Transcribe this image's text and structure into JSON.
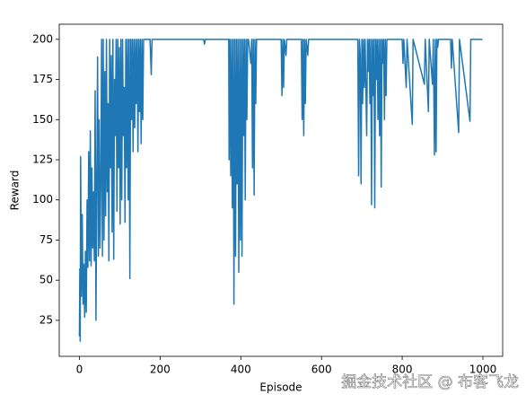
{
  "chart_data": {
    "type": "line",
    "x_label": "Episode",
    "y_label": "Reward",
    "xlim": [
      -50,
      1049
    ],
    "ylim": [
      2.6,
      209.4
    ],
    "xticks": [
      0,
      200,
      400,
      600,
      800,
      1000
    ],
    "yticks": [
      25,
      50,
      75,
      100,
      125,
      150,
      175,
      200
    ],
    "watermark": "掘金技术社区 @ 布客飞龙",
    "series": [
      {
        "color": "#1f77b4",
        "x": [
          0,
          1,
          2,
          3,
          5,
          7,
          9,
          11,
          13,
          15,
          17,
          19,
          21,
          23,
          25,
          27,
          29,
          31,
          33,
          35,
          37,
          39,
          41,
          43,
          45,
          47,
          49,
          51,
          53,
          55,
          57,
          59,
          61,
          63,
          65,
          67,
          69,
          71,
          73,
          75,
          77,
          79,
          81,
          83,
          85,
          87,
          89,
          91,
          93,
          95,
          97,
          99,
          101,
          103,
          105,
          107,
          109,
          111,
          113,
          115,
          117,
          119,
          121,
          123,
          125,
          127,
          129,
          131,
          133,
          135,
          137,
          139,
          141,
          143,
          145,
          147,
          149,
          151,
          153,
          155,
          157,
          159,
          165,
          170,
          175,
          178,
          180,
          200,
          250,
          308,
          310,
          312,
          370,
          371,
          373,
          375,
          377,
          379,
          381,
          383,
          385,
          387,
          389,
          391,
          393,
          395,
          397,
          399,
          401,
          403,
          405,
          407,
          409,
          411,
          413,
          415,
          417,
          419,
          425,
          427,
          429,
          431,
          433,
          435,
          437,
          439,
          500,
          502,
          504,
          506,
          508,
          512,
          514,
          550,
          552,
          554,
          556,
          558,
          560,
          562,
          566,
          568,
          690,
          692,
          694,
          696,
          698,
          700,
          702,
          704,
          706,
          708,
          712,
          714,
          716,
          718,
          720,
          722,
          724,
          726,
          728,
          730,
          732,
          734,
          736,
          738,
          740,
          742,
          744,
          746,
          748,
          750,
          752,
          754,
          756,
          758,
          760,
          762,
          800,
          802,
          804,
          810,
          812,
          825,
          827,
          855,
          857,
          865,
          867,
          875,
          877,
          880,
          882,
          884,
          886,
          888,
          890,
          920,
          922,
          924,
          940,
          942,
          968,
          970,
          999
        ],
        "values": [
          15,
          57,
          12,
          127,
          40,
          91,
          35,
          60,
          27,
          68,
          30,
          100,
          58,
          130,
          62,
          143,
          59,
          120,
          70,
          105,
          62,
          168,
          25,
          110,
          189,
          65,
          150,
          70,
          110,
          200,
          65,
          200,
          75,
          180,
          90,
          200,
          105,
          160,
          62,
          200,
          120,
          190,
          80,
          200,
          63,
          175,
          140,
          200,
          93,
          200,
          120,
          195,
          85,
          200,
          100,
          200,
          140,
          170,
          86,
          200,
          120,
          200,
          100,
          200,
          51,
          200,
          150,
          200,
          130,
          200,
          145,
          200,
          160,
          200,
          130,
          200,
          155,
          200,
          135,
          200,
          150,
          200,
          200,
          200,
          200,
          178,
          200,
          200,
          200,
          200,
          197,
          200,
          200,
          125,
          200,
          115,
          200,
          95,
          200,
          35,
          200,
          65,
          200,
          110,
          200,
          55,
          200,
          75,
          200,
          65,
          200,
          140,
          200,
          100,
          200,
          150,
          200,
          200,
          185,
          200,
          120,
          200,
          103,
          200,
          160,
          200,
          200,
          165,
          200,
          170,
          200,
          190,
          200,
          200,
          150,
          200,
          140,
          200,
          160,
          200,
          190,
          200,
          200,
          115,
          200,
          190,
          110,
          200,
          160,
          200,
          170,
          200,
          140,
          200,
          180,
          200,
          160,
          200,
          97,
          200,
          165,
          200,
          95,
          200,
          175,
          200,
          150,
          200,
          140,
          200,
          108,
          200,
          185,
          200,
          150,
          200,
          165,
          200,
          200,
          185,
          200,
          170,
          200,
          147,
          200,
          172,
          200,
          155,
          200,
          172,
          200,
          128,
          200,
          130,
          200,
          195,
          200,
          200,
          182,
          200,
          142,
          200,
          149,
          200,
          200
        ]
      }
    ]
  }
}
